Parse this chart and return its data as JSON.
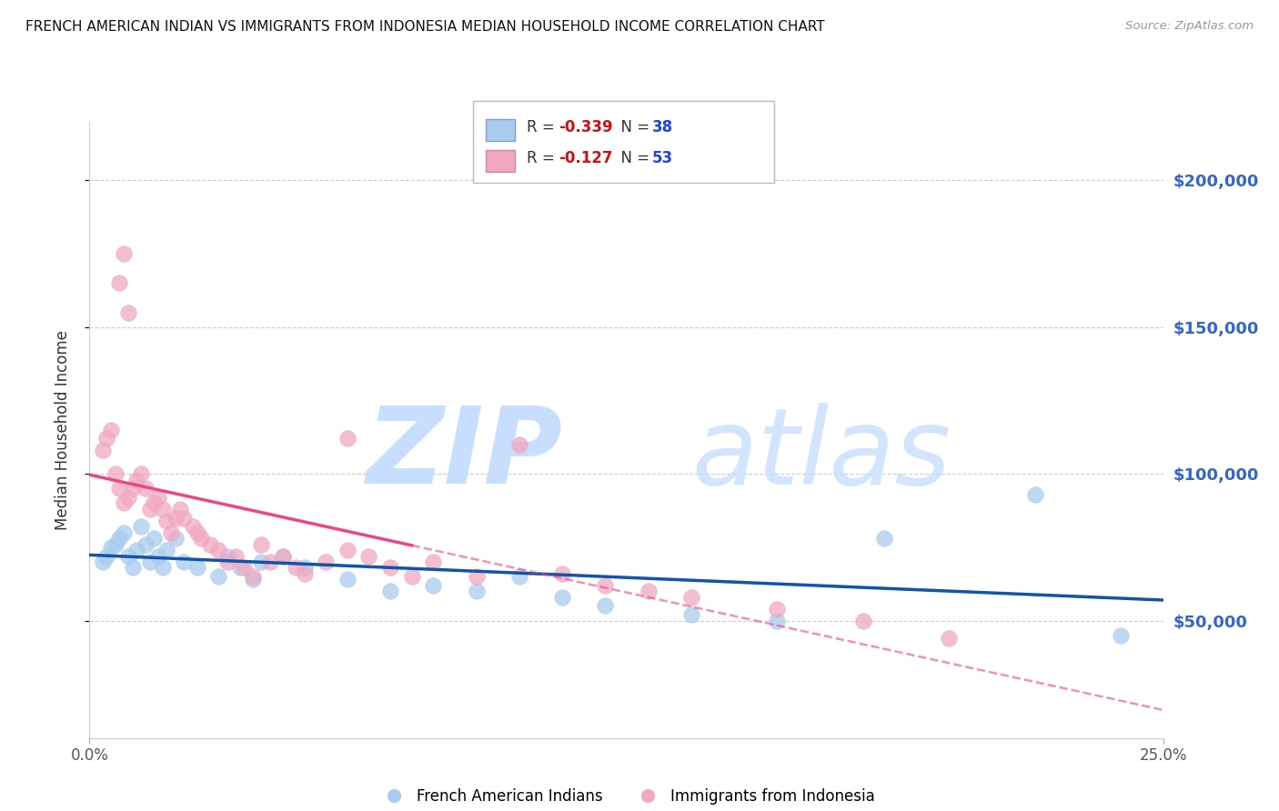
{
  "title": "FRENCH AMERICAN INDIAN VS IMMIGRANTS FROM INDONESIA MEDIAN HOUSEHOLD INCOME CORRELATION CHART",
  "source": "Source: ZipAtlas.com",
  "ylabel": "Median Household Income",
  "xlim": [
    0.0,
    0.25
  ],
  "ylim": [
    10000,
    220000
  ],
  "ytick_vals": [
    50000,
    100000,
    150000,
    200000
  ],
  "xtick_vals": [
    0.0,
    0.25
  ],
  "xtick_labels": [
    "0.0%",
    "25.0%"
  ],
  "blue_color": "#A8CCEE",
  "pink_color": "#F0A8C0",
  "trend_blue": "#1155AA",
  "trend_pink": "#EE4488",
  "watermark_color": "#C8DEFF",
  "background_color": "#FFFFFF",
  "grid_color": "#CCCCCC",
  "blue_x": [
    0.003,
    0.004,
    0.005,
    0.006,
    0.007,
    0.008,
    0.009,
    0.01,
    0.011,
    0.012,
    0.013,
    0.014,
    0.015,
    0.016,
    0.017,
    0.018,
    0.02,
    0.022,
    0.025,
    0.03,
    0.032,
    0.035,
    0.038,
    0.04,
    0.045,
    0.05,
    0.06,
    0.07,
    0.08,
    0.09,
    0.1,
    0.11,
    0.12,
    0.14,
    0.16,
    0.185,
    0.22,
    0.24
  ],
  "blue_y": [
    70000,
    72000,
    75000,
    76000,
    78000,
    80000,
    72000,
    68000,
    74000,
    82000,
    76000,
    70000,
    78000,
    72000,
    68000,
    74000,
    78000,
    70000,
    68000,
    65000,
    72000,
    68000,
    64000,
    70000,
    72000,
    68000,
    64000,
    60000,
    62000,
    60000,
    65000,
    58000,
    55000,
    52000,
    50000,
    78000,
    93000,
    45000
  ],
  "pink_x": [
    0.003,
    0.004,
    0.005,
    0.006,
    0.007,
    0.008,
    0.009,
    0.01,
    0.011,
    0.012,
    0.013,
    0.014,
    0.015,
    0.016,
    0.017,
    0.018,
    0.019,
    0.02,
    0.021,
    0.022,
    0.024,
    0.025,
    0.026,
    0.028,
    0.03,
    0.032,
    0.034,
    0.036,
    0.038,
    0.04,
    0.042,
    0.045,
    0.048,
    0.05,
    0.055,
    0.06,
    0.065,
    0.07,
    0.075,
    0.08,
    0.09,
    0.1,
    0.11,
    0.12,
    0.13,
    0.14,
    0.16,
    0.18,
    0.007,
    0.008,
    0.009,
    0.2,
    0.06
  ],
  "pink_y": [
    108000,
    112000,
    115000,
    100000,
    95000,
    90000,
    92000,
    95000,
    98000,
    100000,
    95000,
    88000,
    90000,
    92000,
    88000,
    84000,
    80000,
    85000,
    88000,
    85000,
    82000,
    80000,
    78000,
    76000,
    74000,
    70000,
    72000,
    68000,
    65000,
    76000,
    70000,
    72000,
    68000,
    66000,
    70000,
    74000,
    72000,
    68000,
    65000,
    70000,
    65000,
    110000,
    66000,
    62000,
    60000,
    58000,
    54000,
    50000,
    165000,
    175000,
    155000,
    44000,
    112000
  ]
}
